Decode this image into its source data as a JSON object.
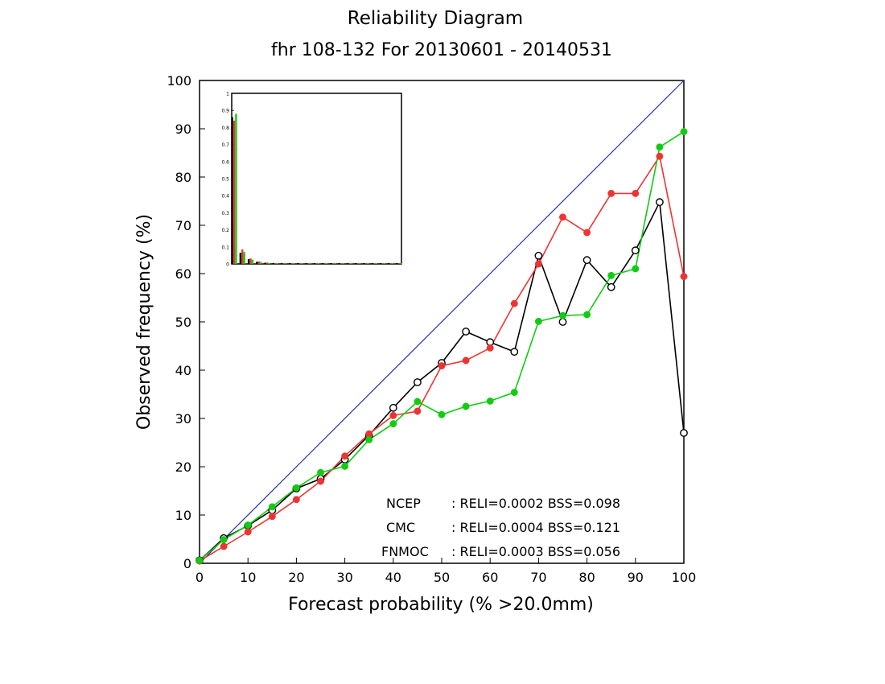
{
  "chart_data": {
    "type": "line",
    "title": "Reliability Diagram",
    "subtitle": "fhr 108-132 For 20130601 - 20140531",
    "xlabel": "Forecast probability (% >20.0mm)",
    "ylabel": "Observed frequency (%)",
    "xlim": [
      0,
      100
    ],
    "ylim": [
      0,
      100
    ],
    "x_ticks": [
      "0",
      "10",
      "20",
      "30",
      "40",
      "50",
      "60",
      "70",
      "80",
      "90",
      "100"
    ],
    "y_ticks": [
      "0",
      "10",
      "20",
      "30",
      "40",
      "50",
      "60",
      "70",
      "80",
      "90",
      "100"
    ],
    "grid": false,
    "diagonal_color": "#2233aa",
    "series": [
      {
        "name": "NCEP",
        "color": "#000000",
        "marker": "open-circle",
        "x": [
          0,
          5,
          10,
          15,
          20,
          25,
          30,
          35,
          40,
          45,
          50,
          55,
          60,
          65,
          70,
          75,
          80,
          85,
          90,
          95,
          100
        ],
        "y": [
          0.6,
          5.2,
          7.8,
          11.0,
          15.5,
          17.5,
          21.5,
          26.5,
          32.2,
          37.5,
          41.5,
          48.0,
          45.8,
          43.8,
          63.7,
          50.0,
          62.8,
          57.2,
          64.8,
          74.8,
          27.0
        ]
      },
      {
        "name": "CMC",
        "color": "#ee3333",
        "marker": "filled-circle",
        "x": [
          0,
          5,
          10,
          15,
          20,
          25,
          30,
          35,
          40,
          45,
          50,
          55,
          60,
          65,
          70,
          75,
          80,
          85,
          90,
          95,
          100
        ],
        "y": [
          0.5,
          3.5,
          6.5,
          9.7,
          13.2,
          17.0,
          22.2,
          26.8,
          30.6,
          31.5,
          40.9,
          42.0,
          44.6,
          53.8,
          62.0,
          71.7,
          68.5,
          76.6,
          76.6,
          84.3,
          59.4
        ]
      },
      {
        "name": "FNMOC",
        "color": "#11cc11",
        "marker": "filled-circle",
        "x": [
          0,
          5,
          10,
          15,
          20,
          25,
          30,
          35,
          40,
          45,
          50,
          55,
          60,
          65,
          70,
          75,
          80,
          85,
          90,
          95,
          100
        ],
        "y": [
          0.6,
          4.9,
          7.9,
          11.7,
          15.6,
          18.8,
          20.1,
          25.6,
          28.9,
          33.5,
          30.8,
          32.5,
          33.6,
          35.4,
          50.1,
          51.3,
          51.5,
          59.6,
          61.0,
          86.2,
          89.4
        ]
      }
    ],
    "legend": {
      "placement": "bottom-right",
      "entries": [
        {
          "label": "NCEP",
          "stats": ": RELI=0.0002 BSS=0.098",
          "color": "#000000"
        },
        {
          "label": "CMC",
          "stats": ": RELI=0.0004 BSS=0.121",
          "color": "#ee3333"
        },
        {
          "label": "FNMOC",
          "stats": ": RELI=0.0003 BSS=0.056",
          "color": "#11cc11"
        }
      ]
    },
    "inset": {
      "type": "bar",
      "placement": "top-left",
      "ylim": [
        0,
        1
      ],
      "y_ticks": [
        "0",
        "0.1",
        "0.2",
        "0.3",
        "0.4",
        "0.5",
        "0.6",
        "0.7",
        "0.8",
        "0.9",
        "1"
      ],
      "categories": [
        0,
        5,
        10,
        15,
        20,
        25,
        30,
        35,
        40,
        45,
        50,
        55,
        60,
        65,
        70,
        75,
        80,
        85,
        90,
        95,
        100
      ],
      "series": [
        {
          "name": "NCEP",
          "color": "#000000",
          "values": [
            0.86,
            0.065,
            0.028,
            0.013,
            0.007,
            0.004,
            0.003,
            0.002,
            0.002,
            0.001,
            0.001,
            0.001,
            0.001,
            0.001,
            0.001,
            0.001,
            0.001,
            0.001,
            0.001,
            0.001,
            0.0005
          ]
        },
        {
          "name": "CMC",
          "color": "#ee3333",
          "values": [
            0.84,
            0.085,
            0.032,
            0.015,
            0.008,
            0.005,
            0.003,
            0.002,
            0.002,
            0.001,
            0.001,
            0.001,
            0.001,
            0.001,
            0.001,
            0.001,
            0.001,
            0.001,
            0.001,
            0.001,
            0.0005
          ]
        },
        {
          "name": "FNMOC",
          "color": "#11cc11",
          "values": [
            0.88,
            0.07,
            0.025,
            0.012,
            0.006,
            0.004,
            0.003,
            0.002,
            0.001,
            0.001,
            0.001,
            0.001,
            0.001,
            0.001,
            0.001,
            0.001,
            0.001,
            0.001,
            0.001,
            0.001,
            0.0005
          ]
        }
      ]
    }
  }
}
